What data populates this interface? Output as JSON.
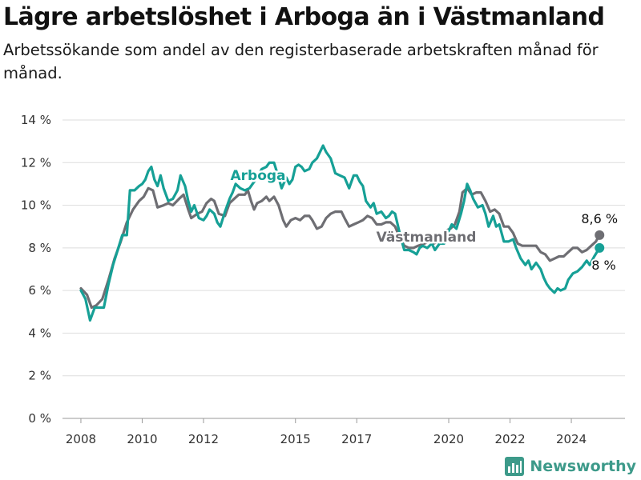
{
  "header": {
    "title": "Lägre arbetslöshet i Arboga än i Västmanland",
    "subtitle": "Arbetssökande som andel av den registerbaserade arbetskraften månad för månad."
  },
  "brand": {
    "name": "Newsworthy",
    "icon": "bar-chart-logo-icon",
    "color": "#3d9a8a"
  },
  "chart_data": {
    "type": "line",
    "title": "Lägre arbetslöshet i Arboga än i Västmanland",
    "subtitle": "Arbetssökande som andel av den registerbaserade arbetskraften månad för månad.",
    "xlabel": "",
    "ylabel": "",
    "x_range": [
      2007.4,
      2025.75
    ],
    "ylim": [
      0,
      14
    ],
    "y_ticks": [
      {
        "value": 0,
        "label": "0 %"
      },
      {
        "value": 2,
        "label": "2 %"
      },
      {
        "value": 4,
        "label": "4 %"
      },
      {
        "value": 6,
        "label": "6 %"
      },
      {
        "value": 8,
        "label": "8 %"
      },
      {
        "value": 10,
        "label": "10 %"
      },
      {
        "value": 12,
        "label": "12 %"
      },
      {
        "value": 14,
        "label": "14 %"
      }
    ],
    "x_ticks": [
      {
        "value": 2008,
        "label": "2008"
      },
      {
        "value": 2010,
        "label": "2010"
      },
      {
        "value": 2012,
        "label": "2012"
      },
      {
        "value": 2015,
        "label": "2015"
      },
      {
        "value": 2017,
        "label": "2017"
      },
      {
        "value": 2020,
        "label": "2020"
      },
      {
        "value": 2022,
        "label": "2022"
      },
      {
        "value": 2024,
        "label": "2024"
      }
    ],
    "grid": true,
    "legend": "none",
    "series": [
      {
        "name": "Västmanland",
        "color": "#6e6e73",
        "end_label": "8,6 %",
        "points": [
          [
            2008.0,
            6.1
          ],
          [
            2008.2,
            5.8
          ],
          [
            2008.35,
            5.2
          ],
          [
            2008.5,
            5.3
          ],
          [
            2008.7,
            5.6
          ],
          [
            2008.9,
            6.5
          ],
          [
            2009.1,
            7.5
          ],
          [
            2009.3,
            8.3
          ],
          [
            2009.5,
            9.2
          ],
          [
            2009.7,
            9.8
          ],
          [
            2009.9,
            10.2
          ],
          [
            2010.05,
            10.4
          ],
          [
            2010.2,
            10.8
          ],
          [
            2010.35,
            10.7
          ],
          [
            2010.5,
            9.9
          ],
          [
            2010.7,
            10.0
          ],
          [
            2010.85,
            10.1
          ],
          [
            2011.0,
            10.0
          ],
          [
            2011.2,
            10.3
          ],
          [
            2011.35,
            10.5
          ],
          [
            2011.5,
            9.8
          ],
          [
            2011.6,
            9.4
          ],
          [
            2011.8,
            9.6
          ],
          [
            2011.95,
            9.7
          ],
          [
            2012.1,
            10.1
          ],
          [
            2012.25,
            10.3
          ],
          [
            2012.35,
            10.2
          ],
          [
            2012.5,
            9.6
          ],
          [
            2012.7,
            9.5
          ],
          [
            2012.85,
            10.1
          ],
          [
            2013.0,
            10.3
          ],
          [
            2013.15,
            10.5
          ],
          [
            2013.35,
            10.5
          ],
          [
            2013.45,
            10.7
          ],
          [
            2013.55,
            10.2
          ],
          [
            2013.65,
            9.8
          ],
          [
            2013.75,
            10.1
          ],
          [
            2013.9,
            10.2
          ],
          [
            2014.05,
            10.4
          ],
          [
            2014.15,
            10.2
          ],
          [
            2014.3,
            10.4
          ],
          [
            2014.45,
            10.0
          ],
          [
            2014.6,
            9.3
          ],
          [
            2014.7,
            9.0
          ],
          [
            2014.85,
            9.3
          ],
          [
            2015.0,
            9.4
          ],
          [
            2015.15,
            9.3
          ],
          [
            2015.3,
            9.5
          ],
          [
            2015.45,
            9.5
          ],
          [
            2015.55,
            9.3
          ],
          [
            2015.7,
            8.9
          ],
          [
            2015.85,
            9.0
          ],
          [
            2016.0,
            9.4
          ],
          [
            2016.15,
            9.6
          ],
          [
            2016.3,
            9.7
          ],
          [
            2016.5,
            9.7
          ],
          [
            2016.6,
            9.4
          ],
          [
            2016.75,
            9.0
          ],
          [
            2016.9,
            9.1
          ],
          [
            2017.05,
            9.2
          ],
          [
            2017.2,
            9.3
          ],
          [
            2017.35,
            9.5
          ],
          [
            2017.5,
            9.4
          ],
          [
            2017.65,
            9.1
          ],
          [
            2017.8,
            9.1
          ],
          [
            2017.95,
            9.2
          ],
          [
            2018.1,
            9.2
          ],
          [
            2018.25,
            9.0
          ],
          [
            2018.4,
            8.5
          ],
          [
            2018.55,
            8.1
          ],
          [
            2018.7,
            8.0
          ],
          [
            2018.85,
            8.0
          ],
          [
            2019.0,
            8.1
          ],
          [
            2019.2,
            8.2
          ],
          [
            2019.35,
            8.3
          ],
          [
            2019.5,
            8.2
          ],
          [
            2019.65,
            8.3
          ],
          [
            2019.8,
            8.6
          ],
          [
            2019.9,
            8.8
          ],
          [
            2020.05,
            8.9
          ],
          [
            2020.2,
            9.1
          ],
          [
            2020.35,
            9.7
          ],
          [
            2020.45,
            10.6
          ],
          [
            2020.6,
            10.8
          ],
          [
            2020.75,
            10.5
          ],
          [
            2020.9,
            10.6
          ],
          [
            2021.05,
            10.6
          ],
          [
            2021.2,
            10.2
          ],
          [
            2021.35,
            9.7
          ],
          [
            2021.5,
            9.8
          ],
          [
            2021.65,
            9.6
          ],
          [
            2021.8,
            9.0
          ],
          [
            2021.95,
            9.0
          ],
          [
            2022.1,
            8.7
          ],
          [
            2022.25,
            8.2
          ],
          [
            2022.4,
            8.1
          ],
          [
            2022.55,
            8.1
          ],
          [
            2022.7,
            8.1
          ],
          [
            2022.85,
            8.1
          ],
          [
            2023.0,
            7.8
          ],
          [
            2023.15,
            7.7
          ],
          [
            2023.3,
            7.4
          ],
          [
            2023.45,
            7.5
          ],
          [
            2023.6,
            7.6
          ],
          [
            2023.75,
            7.6
          ],
          [
            2023.9,
            7.8
          ],
          [
            2024.05,
            8.0
          ],
          [
            2024.2,
            8.0
          ],
          [
            2024.35,
            7.8
          ],
          [
            2024.5,
            7.9
          ],
          [
            2024.65,
            8.1
          ],
          [
            2024.8,
            8.3
          ],
          [
            2024.92,
            8.6
          ]
        ]
      },
      {
        "name": "Arboga",
        "color": "#16a096",
        "end_label": "8 %",
        "points": [
          [
            2008.0,
            6.0
          ],
          [
            2008.15,
            5.6
          ],
          [
            2008.3,
            4.6
          ],
          [
            2008.45,
            5.2
          ],
          [
            2008.6,
            5.2
          ],
          [
            2008.75,
            5.2
          ],
          [
            2008.9,
            6.3
          ],
          [
            2009.05,
            7.2
          ],
          [
            2009.2,
            7.9
          ],
          [
            2009.35,
            8.6
          ],
          [
            2009.5,
            8.6
          ],
          [
            2009.6,
            10.7
          ],
          [
            2009.75,
            10.7
          ],
          [
            2009.9,
            10.9
          ],
          [
            2010.0,
            11.0
          ],
          [
            2010.1,
            11.2
          ],
          [
            2010.2,
            11.6
          ],
          [
            2010.3,
            11.8
          ],
          [
            2010.4,
            11.2
          ],
          [
            2010.5,
            10.9
          ],
          [
            2010.6,
            11.4
          ],
          [
            2010.7,
            10.8
          ],
          [
            2010.85,
            10.2
          ],
          [
            2011.0,
            10.3
          ],
          [
            2011.15,
            10.7
          ],
          [
            2011.25,
            11.4
          ],
          [
            2011.4,
            10.9
          ],
          [
            2011.5,
            10.2
          ],
          [
            2011.6,
            9.7
          ],
          [
            2011.7,
            10.0
          ],
          [
            2011.85,
            9.4
          ],
          [
            2012.0,
            9.3
          ],
          [
            2012.1,
            9.5
          ],
          [
            2012.2,
            9.8
          ],
          [
            2012.35,
            9.6
          ],
          [
            2012.45,
            9.2
          ],
          [
            2012.55,
            9.0
          ],
          [
            2012.7,
            9.7
          ],
          [
            2012.85,
            10.3
          ],
          [
            2012.95,
            10.6
          ],
          [
            2013.05,
            11.0
          ],
          [
            2013.2,
            10.8
          ],
          [
            2013.35,
            10.7
          ],
          [
            2013.5,
            10.8
          ],
          [
            2013.6,
            11.0
          ],
          [
            2013.75,
            11.3
          ],
          [
            2013.9,
            11.7
          ],
          [
            2014.05,
            11.8
          ],
          [
            2014.15,
            12.0
          ],
          [
            2014.3,
            12.0
          ],
          [
            2014.45,
            11.3
          ],
          [
            2014.55,
            10.8
          ],
          [
            2014.7,
            11.3
          ],
          [
            2014.8,
            11.0
          ],
          [
            2014.9,
            11.2
          ],
          [
            2015.0,
            11.8
          ],
          [
            2015.1,
            11.9
          ],
          [
            2015.2,
            11.8
          ],
          [
            2015.3,
            11.6
          ],
          [
            2015.45,
            11.7
          ],
          [
            2015.55,
            12.0
          ],
          [
            2015.7,
            12.2
          ],
          [
            2015.8,
            12.5
          ],
          [
            2015.9,
            12.8
          ],
          [
            2016.0,
            12.5
          ],
          [
            2016.15,
            12.2
          ],
          [
            2016.3,
            11.5
          ],
          [
            2016.45,
            11.4
          ],
          [
            2016.6,
            11.3
          ],
          [
            2016.75,
            10.8
          ],
          [
            2016.9,
            11.4
          ],
          [
            2017.0,
            11.4
          ],
          [
            2017.1,
            11.1
          ],
          [
            2017.2,
            10.9
          ],
          [
            2017.3,
            10.2
          ],
          [
            2017.45,
            9.9
          ],
          [
            2017.55,
            10.1
          ],
          [
            2017.65,
            9.6
          ],
          [
            2017.8,
            9.7
          ],
          [
            2017.95,
            9.4
          ],
          [
            2018.05,
            9.5
          ],
          [
            2018.15,
            9.7
          ],
          [
            2018.25,
            9.6
          ],
          [
            2018.35,
            9.0
          ],
          [
            2018.45,
            8.4
          ],
          [
            2018.55,
            7.9
          ],
          [
            2018.7,
            7.9
          ],
          [
            2018.85,
            7.8
          ],
          [
            2018.95,
            7.7
          ],
          [
            2019.05,
            8.0
          ],
          [
            2019.15,
            8.1
          ],
          [
            2019.3,
            8.0
          ],
          [
            2019.45,
            8.2
          ],
          [
            2019.55,
            7.9
          ],
          [
            2019.7,
            8.2
          ],
          [
            2019.85,
            8.2
          ],
          [
            2020.0,
            8.8
          ],
          [
            2020.1,
            9.1
          ],
          [
            2020.25,
            8.9
          ],
          [
            2020.4,
            9.6
          ],
          [
            2020.5,
            10.2
          ],
          [
            2020.6,
            11.0
          ],
          [
            2020.7,
            10.7
          ],
          [
            2020.8,
            10.3
          ],
          [
            2020.95,
            9.9
          ],
          [
            2021.1,
            10.0
          ],
          [
            2021.2,
            9.6
          ],
          [
            2021.3,
            9.0
          ],
          [
            2021.45,
            9.5
          ],
          [
            2021.55,
            9.0
          ],
          [
            2021.65,
            9.1
          ],
          [
            2021.8,
            8.3
          ],
          [
            2021.95,
            8.3
          ],
          [
            2022.1,
            8.4
          ],
          [
            2022.2,
            8.0
          ],
          [
            2022.35,
            7.5
          ],
          [
            2022.5,
            7.2
          ],
          [
            2022.6,
            7.4
          ],
          [
            2022.7,
            7.0
          ],
          [
            2022.85,
            7.3
          ],
          [
            2023.0,
            7.0
          ],
          [
            2023.1,
            6.6
          ],
          [
            2023.2,
            6.3
          ],
          [
            2023.3,
            6.1
          ],
          [
            2023.45,
            5.9
          ],
          [
            2023.55,
            6.1
          ],
          [
            2023.65,
            6.0
          ],
          [
            2023.8,
            6.1
          ],
          [
            2023.9,
            6.5
          ],
          [
            2024.05,
            6.8
          ],
          [
            2024.2,
            6.9
          ],
          [
            2024.35,
            7.1
          ],
          [
            2024.5,
            7.4
          ],
          [
            2024.6,
            7.2
          ],
          [
            2024.75,
            7.6
          ],
          [
            2024.92,
            8.0
          ]
        ]
      }
    ]
  }
}
